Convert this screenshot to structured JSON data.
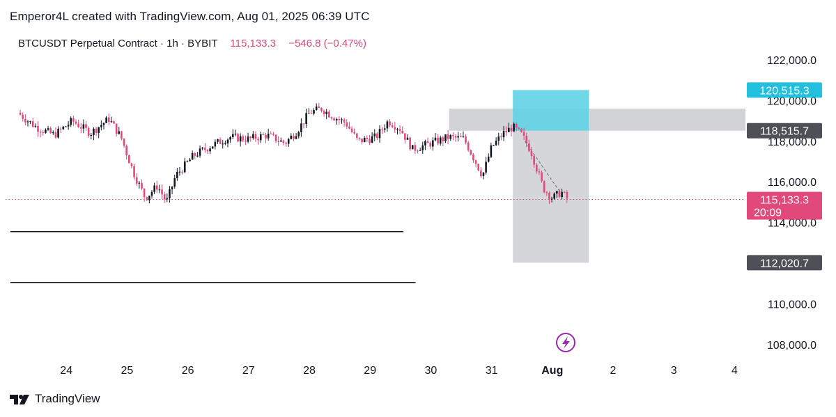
{
  "header": {
    "attribution": "Emperor4L created with TradingView.com, Aug 01, 2025 06:39 UTC"
  },
  "legend": {
    "symbol": "BTCUSDT Perpetual Contract · 1h · BYBIT",
    "last_price": "115,133.3",
    "change": "−546.8 (−0.47%)"
  },
  "footer": {
    "brand": "TradingView"
  },
  "colors": {
    "up": "#131722",
    "down": "#e0497a",
    "target_zone": "#5fd3e5",
    "stop_zone": "#b9bbc0",
    "badge_target": "#22c0dc",
    "badge_price": "#e0497a",
    "badge_gray": "#4e5058"
  },
  "chart_data": {
    "type": "candlestick",
    "title": "BTCUSDT Perpetual Contract · 1h · BYBIT",
    "x_labels": [
      "24",
      "25",
      "26",
      "27",
      "28",
      "29",
      "30",
      "31",
      "Aug",
      "2",
      "3",
      "4"
    ],
    "y_ticks": [
      "122,000.0",
      "120,000.0",
      "118,000.0",
      "116,000.0",
      "114,000.0",
      "112,000.0",
      "110,000.0",
      "108,000.0"
    ],
    "y_tick_values": [
      122000,
      120000,
      118000,
      116000,
      114000,
      112000,
      110000,
      108000
    ],
    "ylim": [
      107000,
      123000
    ],
    "close_anchors": [
      {
        "day": 23.2,
        "price": 119400
      },
      {
        "day": 23.5,
        "price": 118700
      },
      {
        "day": 23.8,
        "price": 118300
      },
      {
        "day": 24.1,
        "price": 119000
      },
      {
        "day": 24.4,
        "price": 118400
      },
      {
        "day": 24.7,
        "price": 119100
      },
      {
        "day": 24.9,
        "price": 118200
      },
      {
        "day": 25.1,
        "price": 116500
      },
      {
        "day": 25.3,
        "price": 115200
      },
      {
        "day": 25.5,
        "price": 115800
      },
      {
        "day": 25.65,
        "price": 115000
      },
      {
        "day": 25.8,
        "price": 116300
      },
      {
        "day": 26.1,
        "price": 117300
      },
      {
        "day": 26.4,
        "price": 117800
      },
      {
        "day": 26.7,
        "price": 118200
      },
      {
        "day": 27.0,
        "price": 118100
      },
      {
        "day": 27.3,
        "price": 118300
      },
      {
        "day": 27.6,
        "price": 117900
      },
      {
        "day": 27.8,
        "price": 118500
      },
      {
        "day": 28.0,
        "price": 119400
      },
      {
        "day": 28.2,
        "price": 119600
      },
      {
        "day": 28.4,
        "price": 119200
      },
      {
        "day": 28.6,
        "price": 118900
      },
      {
        "day": 28.8,
        "price": 118000
      },
      {
        "day": 29.1,
        "price": 118200
      },
      {
        "day": 29.3,
        "price": 119000
      },
      {
        "day": 29.5,
        "price": 118600
      },
      {
        "day": 29.7,
        "price": 117600
      },
      {
        "day": 30.0,
        "price": 117900
      },
      {
        "day": 30.3,
        "price": 118200
      },
      {
        "day": 30.55,
        "price": 118100
      },
      {
        "day": 30.75,
        "price": 116900
      },
      {
        "day": 30.85,
        "price": 116300
      },
      {
        "day": 31.0,
        "price": 117700
      },
      {
        "day": 31.2,
        "price": 118400
      },
      {
        "day": 31.35,
        "price": 118700
      },
      {
        "day": 31.5,
        "price": 118300
      },
      {
        "day": 31.65,
        "price": 117500
      },
      {
        "day": 31.85,
        "price": 115700
      },
      {
        "day": 32.0,
        "price": 115200
      },
      {
        "day": 32.15,
        "price": 115500
      },
      {
        "day": 32.25,
        "price": 115133.3
      }
    ],
    "trade_setup": {
      "target_top": 120515.3,
      "entry": 118515.7,
      "stop": 112020.7,
      "start_day": 31.35,
      "end_day": 32.6
    },
    "resistance_band": {
      "low": 118515.7,
      "high": 119600,
      "start_day": 30.3
    },
    "support_lines": [
      {
        "price": 113550,
        "end_day": 29.55
      },
      {
        "price": 111050,
        "end_day": 29.75
      }
    ],
    "last_price": 115133.3,
    "price_labels": {
      "target": "120,515.3",
      "entry": "118,515.7",
      "current": "115,133.3",
      "countdown": "20:09",
      "stop": "112,020.7"
    },
    "grid": false
  }
}
